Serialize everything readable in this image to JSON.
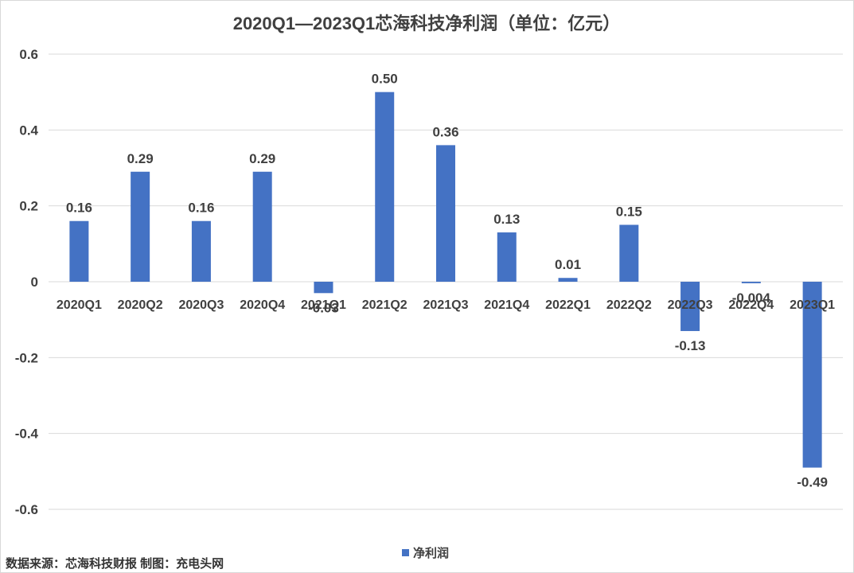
{
  "source_note": "数据来源：芯海科技财报 制图：充电头网",
  "colors": {
    "bar": "#4472C4",
    "grid": "#d9d9d9",
    "text": "#404040"
  },
  "chart_data": {
    "type": "bar",
    "title": "2020Q1—2023Q1芯海科技净利润（单位：亿元）",
    "xlabel": "",
    "ylabel": "",
    "categories": [
      "2020Q1",
      "2020Q2",
      "2020Q3",
      "2020Q4",
      "2021Q1",
      "2021Q2",
      "2021Q3",
      "2021Q4",
      "2022Q1",
      "2022Q2",
      "2022Q3",
      "2022Q4",
      "2023Q1"
    ],
    "series": [
      {
        "name": "净利润",
        "values": [
          0.16,
          0.29,
          0.16,
          0.29,
          -0.03,
          0.5,
          0.36,
          0.13,
          0.01,
          0.15,
          -0.13,
          -0.004,
          -0.49
        ],
        "labels": [
          "0.16",
          "0.29",
          "0.16",
          "0.29",
          "-0.03",
          "0.50",
          "0.36",
          "0.13",
          "0.01",
          "0.15",
          "-0.13",
          "-0.004",
          "-0.49"
        ]
      }
    ],
    "ylim": [
      -0.6,
      0.6
    ],
    "yticks": [
      0.6,
      0.4,
      0.2,
      0,
      -0.2,
      -0.4,
      -0.6
    ],
    "ytick_labels": [
      "0.6",
      "0.4",
      "0.2",
      "0",
      "-0.2",
      "-0.4",
      "-0.6"
    ],
    "grid": true,
    "legend": "bottom-center"
  }
}
